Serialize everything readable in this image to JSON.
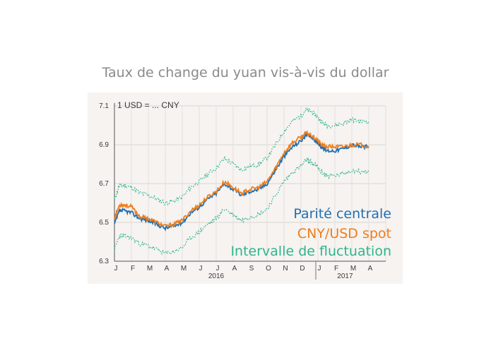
{
  "chart_data": {
    "type": "line",
    "title": "Taux de change du yuan vis-à-vis du dollar",
    "unit_label": "1 USD = ... CNY",
    "ylim": [
      6.3,
      7.1
    ],
    "yticks": [
      "6.3",
      "6.5",
      "6.7",
      "6.9",
      "7.1"
    ],
    "months": [
      "J",
      "F",
      "M",
      "A",
      "M",
      "J",
      "J",
      "A",
      "S",
      "O",
      "N",
      "D",
      "J",
      "F",
      "M",
      "A"
    ],
    "years": [
      "2016",
      "2017"
    ],
    "grid": true,
    "legend_position": "bottom-right",
    "series": [
      {
        "name": "Parité centrale",
        "color": "#1f6fb2",
        "t": [
          0,
          0.3,
          0.6,
          1.0,
          1.5,
          2.0,
          2.5,
          3.0,
          3.5,
          4.0,
          4.5,
          5.0,
          5.5,
          6.0,
          6.5,
          7.0,
          7.5,
          8.0,
          8.5,
          9.0,
          9.5,
          10.0,
          10.5,
          11.0,
          11.3,
          11.6,
          11.9,
          12.2,
          12.5,
          13.0,
          13.5,
          14.0,
          14.5,
          15.0
        ],
        "values": [
          6.49,
          6.56,
          6.56,
          6.55,
          6.52,
          6.51,
          6.49,
          6.47,
          6.48,
          6.5,
          6.55,
          6.58,
          6.62,
          6.65,
          6.7,
          6.67,
          6.64,
          6.66,
          6.67,
          6.7,
          6.77,
          6.84,
          6.89,
          6.92,
          6.95,
          6.94,
          6.92,
          6.89,
          6.87,
          6.87,
          6.88,
          6.9,
          6.89,
          6.89
        ]
      },
      {
        "name": "CNY/USD spot",
        "color": "#ee7d1a",
        "t": [
          0,
          0.3,
          0.6,
          1.0,
          1.5,
          2.0,
          2.5,
          3.0,
          3.5,
          4.0,
          4.5,
          5.0,
          5.5,
          6.0,
          6.5,
          7.0,
          7.5,
          8.0,
          8.5,
          9.0,
          9.5,
          10.0,
          10.5,
          11.0,
          11.3,
          11.6,
          11.9,
          12.2,
          12.5,
          13.0,
          13.5,
          14.0,
          14.5,
          15.0
        ],
        "values": [
          6.52,
          6.59,
          6.59,
          6.58,
          6.53,
          6.52,
          6.5,
          6.48,
          6.49,
          6.51,
          6.56,
          6.59,
          6.63,
          6.66,
          6.71,
          6.68,
          6.65,
          6.67,
          6.68,
          6.71,
          6.78,
          6.86,
          6.91,
          6.94,
          6.96,
          6.95,
          6.93,
          6.9,
          6.89,
          6.89,
          6.89,
          6.9,
          6.9,
          6.89
        ]
      },
      {
        "name": "Intervalle de fluctuation",
        "color": "#2fb58c",
        "t": [
          0,
          0.3,
          0.6,
          1.0,
          1.5,
          2.0,
          2.5,
          3.0,
          3.5,
          4.0,
          4.5,
          5.0,
          5.5,
          6.0,
          6.5,
          7.0,
          7.5,
          8.0,
          8.5,
          9.0,
          9.5,
          10.0,
          10.5,
          11.0,
          11.3,
          11.6,
          11.9,
          12.2,
          12.5,
          13.0,
          13.5,
          14.0,
          14.5,
          15.0
        ],
        "upper": [
          6.62,
          6.69,
          6.69,
          6.68,
          6.65,
          6.64,
          6.62,
          6.6,
          6.61,
          6.63,
          6.68,
          6.71,
          6.75,
          6.78,
          6.83,
          6.8,
          6.77,
          6.79,
          6.8,
          6.83,
          6.9,
          6.97,
          7.02,
          7.05,
          7.08,
          7.07,
          7.05,
          7.02,
          7.0,
          7.0,
          7.01,
          7.03,
          7.02,
          7.02
        ],
        "lower": [
          6.36,
          6.43,
          6.43,
          6.42,
          6.39,
          6.38,
          6.36,
          6.34,
          6.35,
          6.37,
          6.42,
          6.45,
          6.49,
          6.52,
          6.57,
          6.54,
          6.51,
          6.53,
          6.54,
          6.57,
          6.64,
          6.71,
          6.76,
          6.79,
          6.82,
          6.81,
          6.79,
          6.76,
          6.74,
          6.74,
          6.75,
          6.77,
          6.76,
          6.76
        ]
      }
    ]
  }
}
